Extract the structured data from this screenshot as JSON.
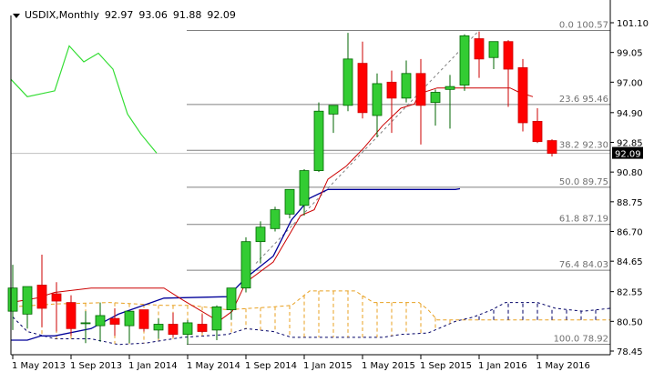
{
  "header": {
    "symbol": "USDIX,Monthly",
    "open": "92.97",
    "high": "93.06",
    "low": "91.88",
    "close": "92.09",
    "menu_icon": "triangle-down-icon"
  },
  "colors": {
    "bull": "#33cc33",
    "bull_border": "#006600",
    "bear": "#ff0000",
    "bear_border": "#cc0000",
    "fib": "#808080",
    "tenkan": "#cc0000",
    "kijun": "#000099",
    "chikou": "#33dd33",
    "senkou_a": "#e8a020",
    "senkou_b": "#000066",
    "current_price_bg": "#000000",
    "current_price_fg": "#ffffff"
  },
  "current_price": "92.09",
  "chart_data": {
    "type": "candlestick",
    "title": "USDIX,Monthly",
    "ohlc_header": {
      "open": 92.97,
      "high": 93.06,
      "low": 91.88,
      "close": 92.09
    },
    "y_ticks": [
      "101.10",
      "99.05",
      "97.00",
      "94.90",
      "92.85",
      "90.80",
      "88.75",
      "86.70",
      "84.65",
      "82.55",
      "80.50",
      "78.45"
    ],
    "x_ticks": [
      "1 May 2013",
      "1 Sep 2013",
      "1 Jan 2014",
      "1 May 2014",
      "1 Sep 2014",
      "1 Jan 2015",
      "1 May 2015",
      "1 Sep 2015",
      "1 Jan 2016",
      "1 May 2016"
    ],
    "ylim": [
      78.2,
      101.5
    ],
    "grid": false,
    "fibonacci_levels": [
      {
        "label": "0.0 100.57",
        "level": 0.0,
        "price": 100.57
      },
      {
        "label": "23.6 95.46",
        "level": 23.6,
        "price": 95.46
      },
      {
        "label": "38.2 92.30",
        "level": 38.2,
        "price": 92.3
      },
      {
        "label": "50.0 89.75",
        "level": 50.0,
        "price": 89.75
      },
      {
        "label": "61.8 87.19",
        "level": 61.8,
        "price": 87.19
      },
      {
        "label": "76.4 84.03",
        "level": 76.4,
        "price": 84.03
      },
      {
        "label": "100.0 78.92",
        "level": 100.0,
        "price": 78.92
      }
    ],
    "candles": [
      {
        "month": "2013-04",
        "open": 81.2,
        "high": 84.4,
        "low": 79.9,
        "close": 82.8
      },
      {
        "month": "2013-05",
        "open": 81.0,
        "high": 82.9,
        "low": 80.0,
        "close": 82.9
      },
      {
        "month": "2013-06",
        "open": 83.0,
        "high": 85.1,
        "low": 80.1,
        "close": 81.4
      },
      {
        "month": "2013-07",
        "open": 82.4,
        "high": 83.2,
        "low": 79.8,
        "close": 81.9
      },
      {
        "month": "2013-08",
        "open": 81.8,
        "high": 82.3,
        "low": 79.5,
        "close": 80.0
      },
      {
        "month": "2013-09",
        "open": 80.4,
        "high": 81.2,
        "low": 79.0,
        "close": 80.4
      },
      {
        "month": "2013-10",
        "open": 80.2,
        "high": 81.8,
        "low": 79.1,
        "close": 80.9
      },
      {
        "month": "2013-11",
        "open": 80.7,
        "high": 81.4,
        "low": 79.5,
        "close": 80.3
      },
      {
        "month": "2013-12",
        "open": 80.2,
        "high": 80.9,
        "low": 79.0,
        "close": 81.2
      },
      {
        "month": "2014-01",
        "open": 81.3,
        "high": 81.3,
        "low": 79.8,
        "close": 80.0
      },
      {
        "month": "2014-02",
        "open": 79.9,
        "high": 80.7,
        "low": 79.3,
        "close": 80.3
      },
      {
        "month": "2014-03",
        "open": 80.3,
        "high": 81.1,
        "low": 79.4,
        "close": 79.6
      },
      {
        "month": "2014-04",
        "open": 79.6,
        "high": 80.6,
        "low": 78.9,
        "close": 80.4
      },
      {
        "month": "2014-05",
        "open": 80.3,
        "high": 81.0,
        "low": 79.7,
        "close": 79.8
      },
      {
        "month": "2014-06",
        "open": 79.9,
        "high": 81.6,
        "low": 79.2,
        "close": 81.5
      },
      {
        "month": "2014-07",
        "open": 81.3,
        "high": 82.8,
        "low": 80.6,
        "close": 82.8
      },
      {
        "month": "2014-08",
        "open": 82.8,
        "high": 86.3,
        "low": 82.5,
        "close": 86.0
      },
      {
        "month": "2014-09",
        "open": 86.0,
        "high": 87.4,
        "low": 84.5,
        "close": 87.0
      },
      {
        "month": "2014-10",
        "open": 86.9,
        "high": 88.4,
        "low": 86.7,
        "close": 88.2
      },
      {
        "month": "2014-11",
        "open": 87.9,
        "high": 89.3,
        "low": 87.6,
        "close": 89.6
      },
      {
        "month": "2014-12",
        "open": 88.5,
        "high": 91.0,
        "low": 87.8,
        "close": 90.9
      },
      {
        "month": "2015-01",
        "open": 90.9,
        "high": 95.6,
        "low": 90.8,
        "close": 95.0
      },
      {
        "month": "2015-02",
        "open": 94.8,
        "high": 95.4,
        "low": 93.5,
        "close": 95.4
      },
      {
        "month": "2015-03",
        "open": 95.4,
        "high": 100.4,
        "low": 95.0,
        "close": 98.6
      },
      {
        "month": "2015-04",
        "open": 98.3,
        "high": 99.8,
        "low": 94.5,
        "close": 94.9
      },
      {
        "month": "2015-05",
        "open": 94.7,
        "high": 97.6,
        "low": 93.2,
        "close": 96.9
      },
      {
        "month": "2015-06",
        "open": 97.0,
        "high": 97.8,
        "low": 93.5,
        "close": 95.9
      },
      {
        "month": "2015-07",
        "open": 95.9,
        "high": 98.5,
        "low": 95.6,
        "close": 97.6
      },
      {
        "month": "2015-08",
        "open": 97.6,
        "high": 98.6,
        "low": 92.7,
        "close": 95.4
      },
      {
        "month": "2015-09",
        "open": 95.6,
        "high": 96.5,
        "low": 94.0,
        "close": 96.3
      },
      {
        "month": "2015-10",
        "open": 96.5,
        "high": 97.5,
        "low": 93.8,
        "close": 96.7
      },
      {
        "month": "2015-11",
        "open": 96.8,
        "high": 100.3,
        "low": 96.4,
        "close": 100.2
      },
      {
        "month": "2015-12",
        "open": 100.0,
        "high": 100.5,
        "low": 97.3,
        "close": 98.6
      },
      {
        "month": "2016-01",
        "open": 98.7,
        "high": 99.6,
        "low": 97.9,
        "close": 99.8
      },
      {
        "month": "2016-02",
        "open": 99.8,
        "high": 99.9,
        "low": 95.3,
        "close": 97.9
      },
      {
        "month": "2016-03",
        "open": 98.0,
        "high": 98.6,
        "low": 93.6,
        "close": 94.2
      },
      {
        "month": "2016-04",
        "open": 94.3,
        "high": 95.2,
        "low": 92.8,
        "close": 92.9
      },
      {
        "month": "2016-05",
        "open": 92.97,
        "high": 93.06,
        "low": 91.88,
        "close": 92.09
      }
    ],
    "indicators": [
      "Ichimoku Kinko Hyo (Tenkan, Kijun, Senkou A, Senkou B, Chikou)",
      "Fibonacci retracement 78.92-100.57"
    ]
  }
}
